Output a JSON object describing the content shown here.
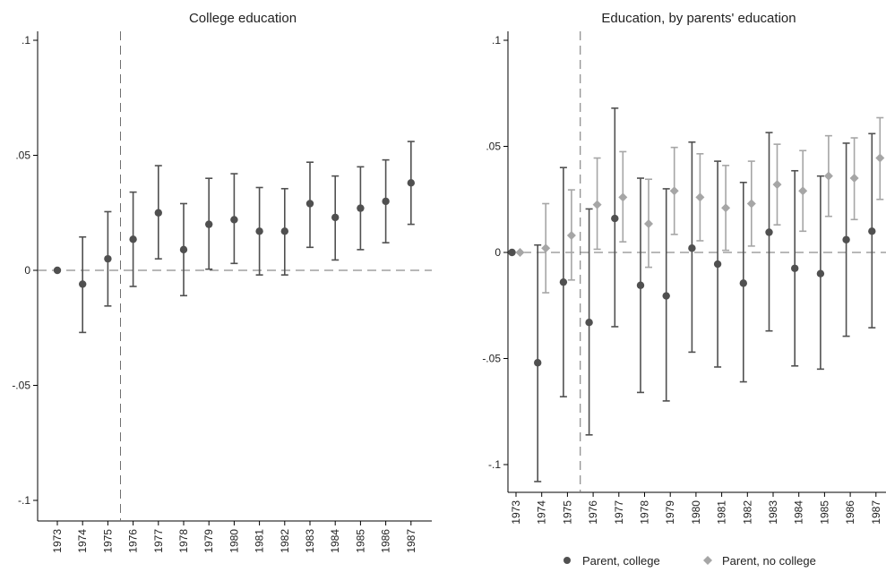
{
  "colors": {
    "parent_college": "#505050",
    "parent_no_college": "#a6a6a6",
    "axis": "#000000",
    "reference_line": "#707070"
  },
  "chart_data": [
    {
      "type": "scatter",
      "title": "College education",
      "xlabel": "",
      "ylabel": "",
      "categories": [
        "1973",
        "1974",
        "1975",
        "1976",
        "1977",
        "1978",
        "1979",
        "1980",
        "1981",
        "1982",
        "1983",
        "1984",
        "1985",
        "1986",
        "1987"
      ],
      "ylim": [
        -0.115,
        0.115
      ],
      "yticks": [
        -0.1,
        -0.05,
        0,
        0.05,
        0.1
      ],
      "ytick_labels": [
        "-.1",
        "-.05",
        "0",
        ".05",
        ".1"
      ],
      "reference_lines": {
        "horizontal": 0,
        "vertical_between": [
          "1975",
          "1976"
        ]
      },
      "grid": false,
      "series": [
        {
          "marker": "circle",
          "estimates": [
            0,
            -0.006,
            0.005,
            0.0135,
            0.025,
            0.009,
            0.02,
            0.022,
            0.017,
            0.017,
            0.029,
            0.023,
            0.027,
            0.03,
            0.038
          ],
          "ci_low": [
            0,
            -0.027,
            -0.0155,
            -0.007,
            0.005,
            -0.011,
            0.0005,
            0.003,
            -0.002,
            -0.002,
            0.01,
            0.0045,
            0.009,
            0.012,
            0.02
          ],
          "ci_high": [
            0,
            0.0145,
            0.0255,
            0.034,
            0.0455,
            0.029,
            0.04,
            0.042,
            0.036,
            0.0355,
            0.047,
            0.041,
            0.045,
            0.048,
            0.056
          ]
        }
      ]
    },
    {
      "type": "scatter",
      "title": "Education, by parents' education",
      "xlabel": "",
      "ylabel": "",
      "categories": [
        "1973",
        "1974",
        "1975",
        "1976",
        "1977",
        "1978",
        "1979",
        "1980",
        "1981",
        "1982",
        "1983",
        "1984",
        "1985",
        "1986",
        "1987"
      ],
      "ylim": [
        -0.115,
        0.115
      ],
      "yticks": [
        -0.1,
        -0.05,
        0,
        0.05,
        0.1
      ],
      "ytick_labels": [
        "-.1",
        "-.05",
        "0",
        ".05",
        ".1"
      ],
      "reference_lines": {
        "horizontal": 0,
        "vertical_between": [
          "1975",
          "1976"
        ]
      },
      "grid": false,
      "legend_position": "bottom",
      "series": [
        {
          "name": "Parent, college",
          "marker": "circle",
          "estimates": [
            0,
            -0.052,
            -0.014,
            -0.033,
            0.016,
            -0.0155,
            -0.0205,
            0.002,
            -0.0055,
            -0.0145,
            0.0095,
            -0.0075,
            -0.01,
            0.006,
            0.01
          ],
          "ci_low": [
            0,
            -0.108,
            -0.068,
            -0.086,
            -0.035,
            -0.066,
            -0.07,
            -0.047,
            -0.054,
            -0.061,
            -0.037,
            -0.0535,
            -0.055,
            -0.0395,
            -0.0355
          ],
          "ci_high": [
            0,
            0.0035,
            0.04,
            0.0205,
            0.068,
            0.035,
            0.03,
            0.052,
            0.043,
            0.033,
            0.0565,
            0.0385,
            0.036,
            0.0515,
            0.056
          ]
        },
        {
          "name": "Parent, no college",
          "marker": "diamond",
          "estimates": [
            0,
            0.002,
            0.008,
            0.0225,
            0.026,
            0.0135,
            0.029,
            0.026,
            0.021,
            0.023,
            0.032,
            0.029,
            0.036,
            0.035,
            0.0445
          ],
          "ci_low": [
            0,
            -0.019,
            -0.013,
            0.0015,
            0.005,
            -0.007,
            0.0085,
            0.0055,
            0.001,
            0.003,
            0.013,
            0.01,
            0.017,
            0.0155,
            0.025
          ],
          "ci_high": [
            0,
            0.023,
            0.0295,
            0.0445,
            0.0475,
            0.0345,
            0.0495,
            0.0465,
            0.041,
            0.043,
            0.051,
            0.048,
            0.055,
            0.054,
            0.0635
          ]
        }
      ]
    }
  ]
}
